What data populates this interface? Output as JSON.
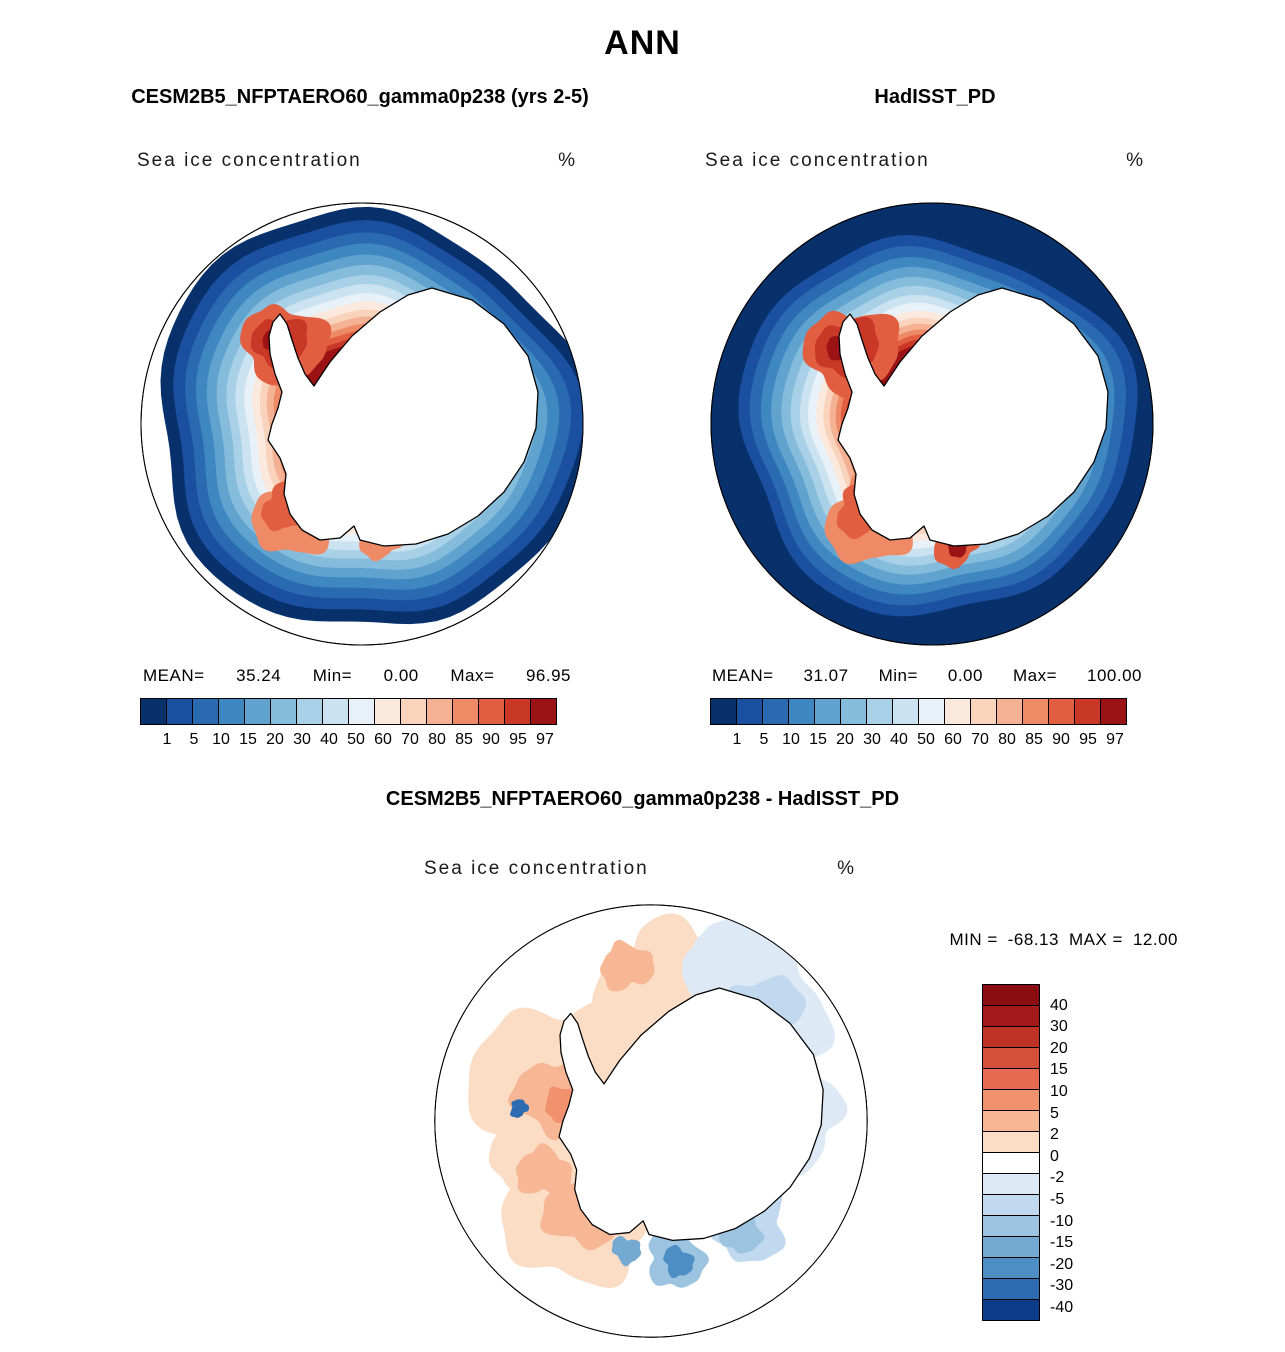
{
  "page": {
    "title": "ANN"
  },
  "panels": [
    {
      "title": "CESM2B5_NFPTAERO60_gamma0p238 (yrs 2-5)",
      "subtitle": "Sea ice concentration",
      "units": "%",
      "stats": {
        "mean_label": "MEAN=",
        "mean": "35.24",
        "min_label": "Min=",
        "min": "0.00",
        "max_label": "Max=",
        "max": "96.95"
      }
    },
    {
      "title": "HadISST_PD",
      "subtitle": "Sea ice concentration",
      "units": "%",
      "stats": {
        "mean_label": "MEAN=",
        "mean": "31.07",
        "min_label": "Min=",
        "min": "0.00",
        "max_label": "Max=",
        "max": "100.00"
      }
    },
    {
      "title": "CESM2B5_NFPTAERO60_gamma0p238 - HadISST_PD",
      "subtitle": "Sea ice concentration",
      "units": "%",
      "stats": {
        "min_label": "MIN =",
        "min": "-68.13",
        "max_label": "MAX =",
        "max": "12.00"
      }
    }
  ],
  "colorbar": {
    "labels": [
      "1",
      "5",
      "10",
      "15",
      "20",
      "30",
      "40",
      "50",
      "60",
      "70",
      "80",
      "85",
      "90",
      "95",
      "97"
    ],
    "colors": [
      "#08316c",
      "#1b4fa0",
      "#2a6ab0",
      "#3f87c0",
      "#61a3cf",
      "#85bcdc",
      "#a8d0e7",
      "#cbe2f0",
      "#e8f1f8",
      "#fbe9dd",
      "#f9d3bc",
      "#f5b193",
      "#ee8a66",
      "#e25e41",
      "#c93827",
      "#9c1316"
    ]
  },
  "diff_colorbar": {
    "labels": [
      "40",
      "30",
      "20",
      "15",
      "10",
      "5",
      "2",
      "0",
      "-2",
      "-5",
      "-10",
      "-15",
      "-20",
      "-30",
      "-40"
    ],
    "colors": [
      "#8a0d12",
      "#a31818",
      "#bf3326",
      "#d5503a",
      "#e56c50",
      "#f0926e",
      "#f7b694",
      "#fbdcc5",
      "#ffffff",
      "#ddeaf5",
      "#c1d9ee",
      "#9cc4e0",
      "#74aad2",
      "#4d8ec4",
      "#2d6cb0",
      "#0d3d8a"
    ]
  },
  "chart_data": [
    {
      "type": "heatmap",
      "projection": "south-polar-stereographic",
      "title": "CESM2B5_NFPTAERO60_gamma0p238 (yrs 2-5)",
      "season": "ANN",
      "variable": "Sea ice concentration",
      "units": "%",
      "mean": 35.24,
      "min": 0.0,
      "max": 96.95,
      "contour_levels": [
        1,
        5,
        10,
        15,
        20,
        30,
        40,
        50,
        60,
        70,
        80,
        85,
        90,
        95,
        97
      ],
      "palette": "blue-to-red",
      "legend_position": "bottom"
    },
    {
      "type": "heatmap",
      "projection": "south-polar-stereographic",
      "title": "HadISST_PD",
      "season": "ANN",
      "variable": "Sea ice concentration",
      "units": "%",
      "mean": 31.07,
      "min": 0.0,
      "max": 100.0,
      "contour_levels": [
        1,
        5,
        10,
        15,
        20,
        30,
        40,
        50,
        60,
        70,
        80,
        85,
        90,
        95,
        97
      ],
      "palette": "blue-to-red",
      "legend_position": "bottom"
    },
    {
      "type": "heatmap",
      "projection": "south-polar-stereographic",
      "title": "CESM2B5_NFPTAERO60_gamma0p238 - HadISST_PD",
      "season": "ANN",
      "variable": "Sea ice concentration difference",
      "units": "%",
      "min": -68.13,
      "max": 12.0,
      "contour_levels": [
        40,
        30,
        20,
        15,
        10,
        5,
        2,
        0,
        -2,
        -5,
        -10,
        -15,
        -20,
        -30,
        -40
      ],
      "palette": "red-to-blue",
      "legend_position": "right"
    }
  ]
}
